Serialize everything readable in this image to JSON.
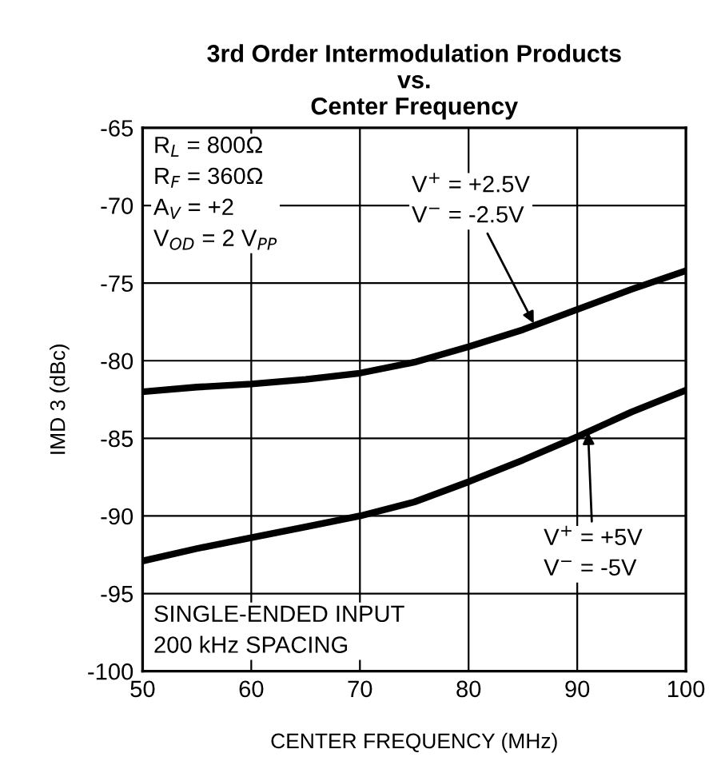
{
  "chart_data": {
    "type": "line",
    "title": "3rd Order Intermodulation Products\nvs.\nCenter Frequency",
    "xlabel": "CENTER FREQUENCY (MHz)",
    "ylabel": "IMD 3 (dBc)",
    "x": [
      50,
      55,
      60,
      65,
      70,
      75,
      80,
      85,
      90,
      95,
      100
    ],
    "series": [
      {
        "color": "#000000",
        "values": [
          -82.0,
          -81.7,
          -81.5,
          -81.2,
          -80.8,
          -80.1,
          -79.1,
          -78.0,
          -76.7,
          -75.4,
          -74.2
        ]
      },
      {
        "color": "#000000",
        "values": [
          -92.9,
          -92.1,
          -91.4,
          -90.7,
          -90.0,
          -89.1,
          -87.8,
          -86.4,
          -84.9,
          -83.3,
          -81.9
        ]
      }
    ],
    "xlim": [
      50,
      100
    ],
    "xticks": [
      50,
      60,
      70,
      80,
      90,
      100
    ],
    "ylim": [
      -100,
      -65
    ],
    "yticks": [
      -100,
      -95,
      -90,
      -85,
      -80,
      -75,
      -70,
      -65
    ],
    "grid": true,
    "legend": false,
    "marker": "none",
    "line_style": "solid",
    "annotations": [
      "R$_{L}$ = 800Ω\nR$_{F}$ = 360Ω\nA$_{V}$ = +2\nV$_{OD}$ = 2 V$_{PP}$",
      "SINGLE-ENDED INPUT\n200 kHz SPACING",
      {
        "text": "V$^{+}$ = +2.5V\nV$^{−}$ = -2.5V",
        "x": 86,
        "y": -77.6
      },
      {
        "text": "V$^{+}$ = +5V\nV$^{−}$ = -5V",
        "x": 91,
        "y": -84.6
      }
    ]
  }
}
